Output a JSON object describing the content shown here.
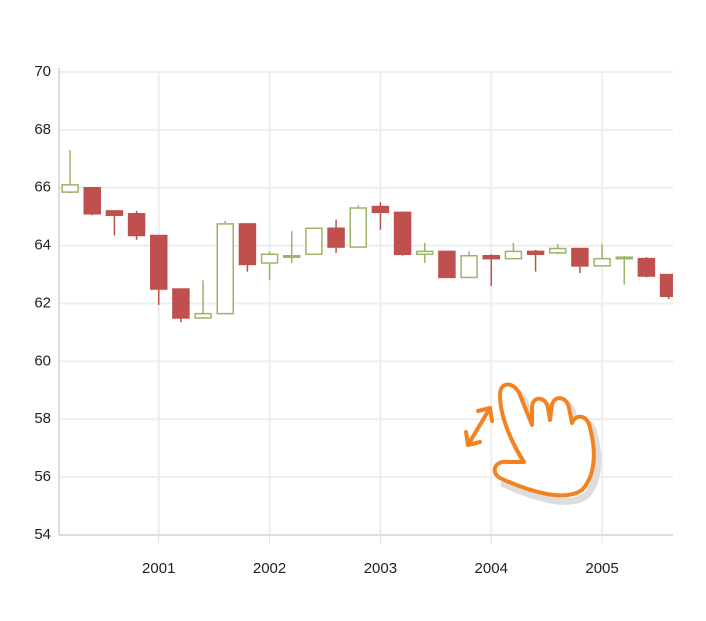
{
  "chart_data": {
    "type": "candlestick",
    "x": [
      2000.2,
      2000.4,
      2000.6,
      2000.8,
      2001.0,
      2001.2,
      2001.4,
      2001.6,
      2001.8,
      2002.0,
      2002.2,
      2002.4,
      2002.6,
      2002.8,
      2003.0,
      2003.2,
      2003.4,
      2003.6,
      2003.8,
      2004.0,
      2004.2,
      2004.4,
      2004.6,
      2004.8,
      2005.0,
      2005.2,
      2005.4,
      2005.6
    ],
    "open": [
      65.85,
      66.0,
      65.2,
      65.1,
      64.35,
      62.5,
      61.5,
      61.65,
      64.75,
      63.4,
      63.6,
      63.7,
      64.6,
      63.95,
      65.35,
      65.15,
      63.7,
      63.8,
      62.9,
      63.65,
      63.55,
      63.8,
      63.75,
      63.9,
      63.3,
      63.55,
      63.55,
      63.0
    ],
    "high": [
      67.3,
      66.0,
      65.2,
      65.2,
      64.35,
      62.5,
      62.8,
      64.85,
      64.75,
      63.8,
      64.5,
      64.6,
      64.9,
      65.4,
      65.5,
      65.15,
      64.1,
      63.8,
      63.8,
      63.7,
      64.1,
      63.85,
      64.05,
      63.9,
      64.05,
      63.65,
      63.6,
      63.0
    ],
    "low": [
      65.8,
      65.05,
      64.35,
      64.2,
      61.95,
      61.35,
      61.5,
      61.65,
      63.1,
      62.8,
      63.4,
      63.7,
      63.75,
      63.95,
      64.55,
      63.65,
      63.4,
      62.9,
      62.9,
      62.6,
      63.55,
      63.1,
      63.7,
      63.05,
      63.3,
      62.65,
      62.9,
      62.15
    ],
    "close": [
      66.1,
      65.1,
      65.05,
      64.35,
      62.5,
      61.5,
      61.65,
      64.75,
      63.35,
      63.7,
      63.65,
      64.6,
      63.95,
      65.3,
      65.15,
      63.7,
      63.8,
      62.9,
      63.65,
      63.55,
      63.8,
      63.7,
      63.9,
      63.3,
      63.55,
      63.6,
      62.95,
      62.25
    ],
    "up_color": "#9cb36a",
    "down_color": "#c0504d",
    "xlim": [
      2000.1,
      2005.64
    ],
    "xticks": [
      2001,
      2002,
      2003,
      2004,
      2005
    ],
    "ylim": [
      54,
      70
    ],
    "yticks": [
      54,
      56,
      58,
      60,
      62,
      64,
      66,
      68,
      70
    ],
    "grid": true
  }
}
